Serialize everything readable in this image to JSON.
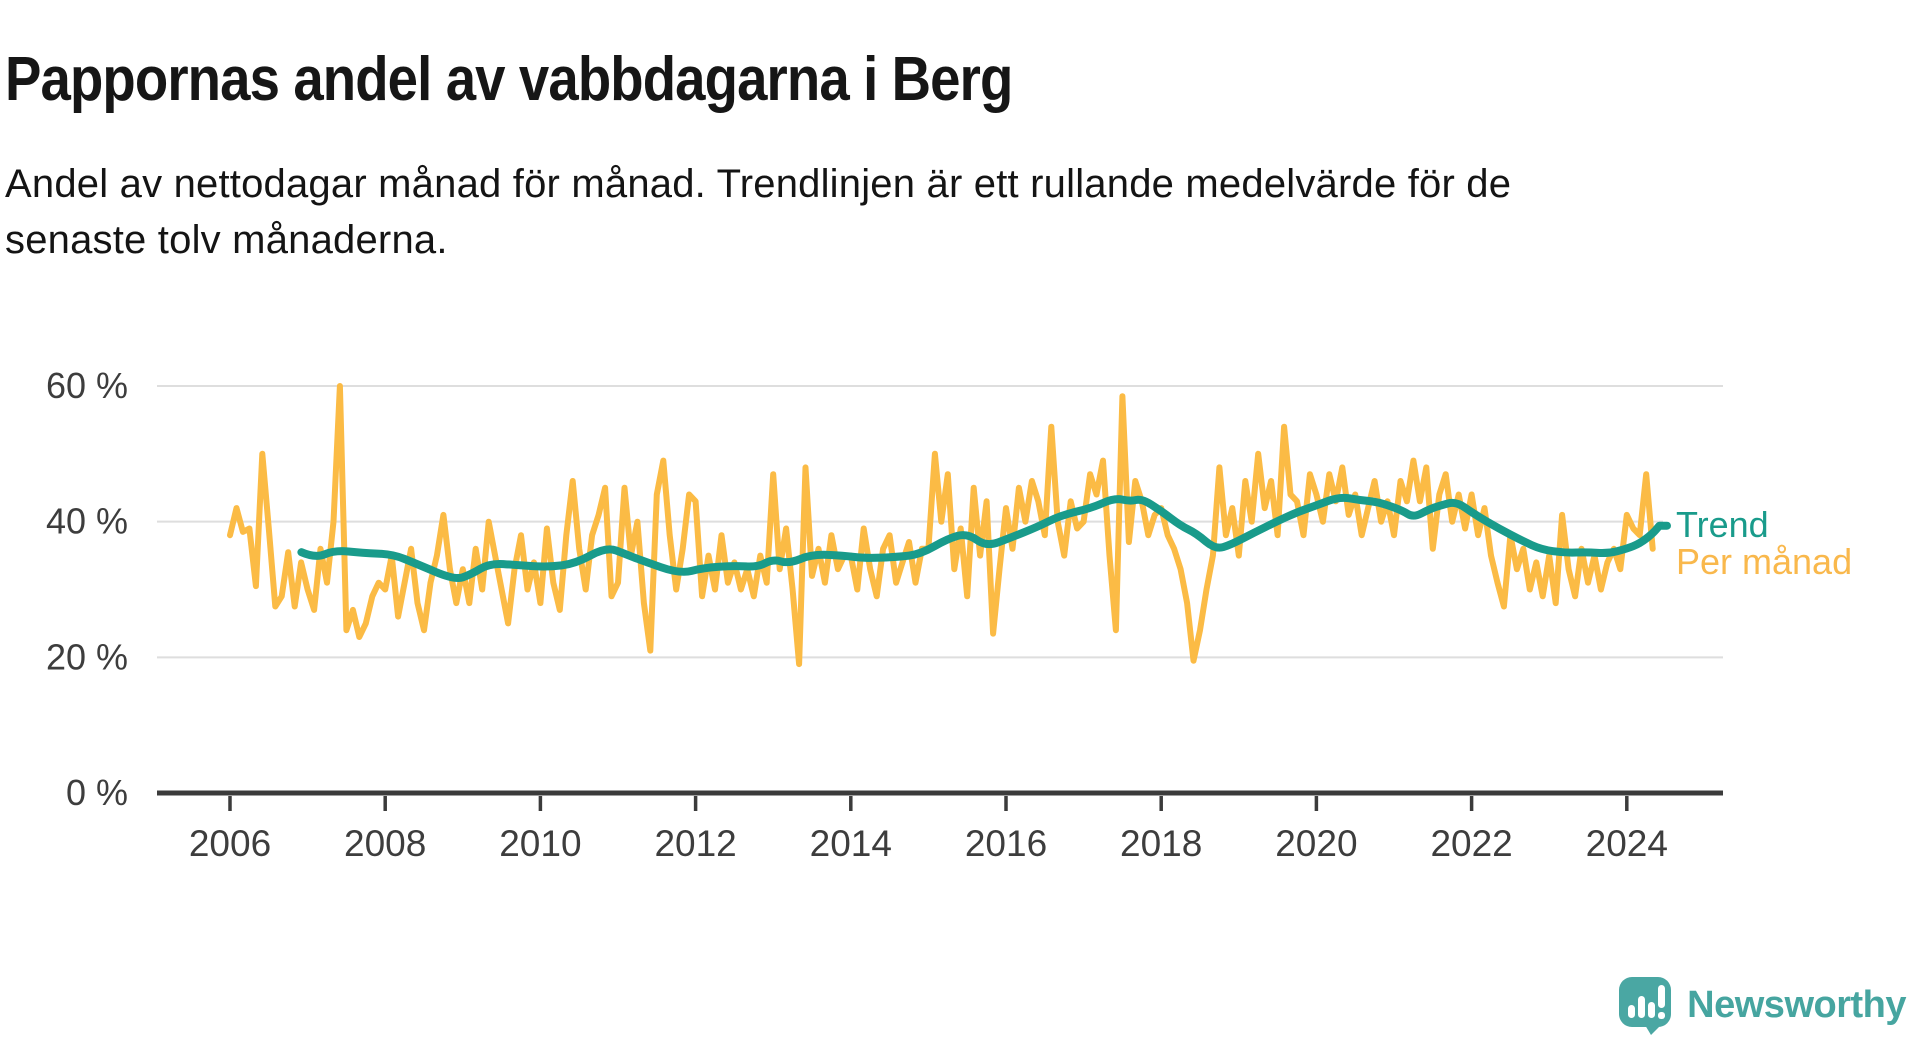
{
  "header": {
    "title": "Pappornas andel av vabbdagarna i Berg",
    "subtitle_lines": [
      "Andel av nettodagar månad för månad. Trendlinjen är ett rullande medelvärde för de",
      "senaste tolv månaderna."
    ]
  },
  "chart_data": {
    "type": "line",
    "title": "Pappornas andel av vabbdagarna i Berg",
    "subtitle": "Andel av nettodagar månad för månad. Trendlinjen är ett rullande medelvärde för de senaste tolv månaderna.",
    "xlabel": "",
    "ylabel": "",
    "unit": "%",
    "grid": "horizontal-only",
    "xlim": [
      2005.6,
      2025.3
    ],
    "ylim": [
      0,
      63
    ],
    "legend_position": "right-end-of-lines",
    "x_ticks": [
      2006,
      2008,
      2010,
      2012,
      2014,
      2016,
      2018,
      2020,
      2022,
      2024
    ],
    "y_ticks": [
      {
        "value": 0,
        "label": "0 %"
      },
      {
        "value": 20,
        "label": "20 %"
      },
      {
        "value": 40,
        "label": "40 %"
      },
      {
        "value": 60,
        "label": "60 %"
      }
    ],
    "series": [
      {
        "name": "Per månad",
        "color": "#FBBB45",
        "label_color": "#F9B84C",
        "x_start": 2006.0,
        "x_step": 0.0833,
        "values": [
          38,
          42,
          38.5,
          39,
          30.5,
          50,
          39,
          27.5,
          29,
          35.5,
          27.5,
          34,
          30,
          27,
          36,
          31,
          40,
          60,
          24,
          27,
          23,
          25,
          29,
          31,
          30,
          35,
          26,
          31,
          36,
          28,
          24,
          31,
          35,
          41,
          33,
          28,
          33,
          28,
          36,
          30,
          40,
          35,
          30,
          25,
          33,
          38,
          30,
          34,
          28,
          39,
          31,
          27,
          38,
          46,
          36,
          30,
          38,
          41,
          45,
          29,
          31,
          45,
          35,
          40,
          28,
          21,
          44,
          49,
          38,
          30,
          36,
          44,
          43,
          29,
          35,
          30,
          38,
          31,
          34,
          30,
          33,
          29,
          35,
          31,
          47,
          33,
          39,
          30,
          19,
          48,
          32,
          36,
          31,
          38,
          33,
          35,
          35,
          30,
          39,
          33,
          29,
          36,
          38,
          31,
          34,
          37,
          31,
          36,
          36,
          50,
          40,
          47,
          33,
          39,
          29,
          45,
          35,
          43,
          23.5,
          33,
          42,
          36,
          45,
          40,
          46,
          43,
          38,
          54,
          40,
          35,
          43,
          39,
          40,
          47,
          44,
          49,
          35,
          24,
          58.5,
          37,
          46,
          43,
          38,
          41,
          42,
          38,
          36,
          33,
          28,
          19.5,
          24,
          30,
          35,
          48,
          38,
          42,
          35,
          46,
          40,
          50,
          42,
          46,
          38,
          54,
          44,
          43,
          38,
          47,
          44,
          40,
          47,
          43,
          48,
          41,
          44,
          38,
          42,
          46,
          40,
          43,
          38,
          46,
          43,
          49,
          43,
          48,
          36,
          44,
          47,
          40,
          44,
          39,
          44,
          38,
          42,
          35,
          31,
          27.5,
          38,
          33,
          36,
          30,
          34,
          29,
          35,
          28,
          41,
          33,
          29,
          36,
          31,
          35,
          30,
          34,
          36,
          33,
          41,
          39,
          38,
          47,
          36
        ]
      },
      {
        "name": "Trend",
        "color": "#199B8B",
        "label_color": "#199B8B",
        "points": [
          [
            2006.92,
            35.5
          ],
          [
            2007.1,
            34.6
          ],
          [
            2007.35,
            35.8
          ],
          [
            2007.7,
            35.4
          ],
          [
            2008.1,
            35.2
          ],
          [
            2008.4,
            33.8
          ],
          [
            2008.9,
            31.4
          ],
          [
            2009.1,
            32.2
          ],
          [
            2009.35,
            33.9
          ],
          [
            2009.7,
            33.6
          ],
          [
            2010.1,
            33.3
          ],
          [
            2010.45,
            33.8
          ],
          [
            2010.85,
            36.3
          ],
          [
            2011.1,
            35.2
          ],
          [
            2011.3,
            34.3
          ],
          [
            2011.8,
            32.3
          ],
          [
            2012.1,
            33.2
          ],
          [
            2012.5,
            33.5
          ],
          [
            2012.8,
            33.3
          ],
          [
            2013.0,
            34.5
          ],
          [
            2013.2,
            33.8
          ],
          [
            2013.5,
            35.2
          ],
          [
            2013.9,
            35.0
          ],
          [
            2014.2,
            34.6
          ],
          [
            2014.6,
            34.8
          ],
          [
            2014.9,
            35.2
          ],
          [
            2015.25,
            37.5
          ],
          [
            2015.5,
            38.3
          ],
          [
            2015.75,
            36.3
          ],
          [
            2016.05,
            37.6
          ],
          [
            2016.4,
            39.2
          ],
          [
            2016.7,
            40.9
          ],
          [
            2017.1,
            42.0
          ],
          [
            2017.4,
            43.5
          ],
          [
            2017.6,
            43.0
          ],
          [
            2017.75,
            43.4
          ],
          [
            2018.0,
            41.6
          ],
          [
            2018.25,
            39.4
          ],
          [
            2018.45,
            38.3
          ],
          [
            2018.7,
            35.9
          ],
          [
            2018.9,
            36.6
          ],
          [
            2019.2,
            38.4
          ],
          [
            2019.5,
            40.1
          ],
          [
            2019.75,
            41.4
          ],
          [
            2020.0,
            42.4
          ],
          [
            2020.3,
            43.7
          ],
          [
            2020.55,
            43.2
          ],
          [
            2020.8,
            42.9
          ],
          [
            2021.1,
            41.7
          ],
          [
            2021.25,
            40.6
          ],
          [
            2021.45,
            41.8
          ],
          [
            2021.6,
            42.4
          ],
          [
            2021.8,
            43.0
          ],
          [
            2022.05,
            41.0
          ],
          [
            2022.35,
            39.0
          ],
          [
            2022.65,
            37.2
          ],
          [
            2022.9,
            35.9
          ],
          [
            2023.2,
            35.4
          ],
          [
            2023.5,
            35.5
          ],
          [
            2023.75,
            35.3
          ],
          [
            2024.0,
            36.0
          ],
          [
            2024.17,
            36.8
          ],
          [
            2024.33,
            38.2
          ],
          [
            2024.42,
            39.4
          ]
        ]
      }
    ],
    "colors": {
      "gridline": "#DEDEDE",
      "axis": "#3B3B3B",
      "tick_label": "#3D3D3D"
    }
  },
  "branding": {
    "logo_text": "Newsworthy",
    "logo_color": "#46A5A0",
    "logo_icon": "speech-bubble-bar-chart-icon"
  }
}
